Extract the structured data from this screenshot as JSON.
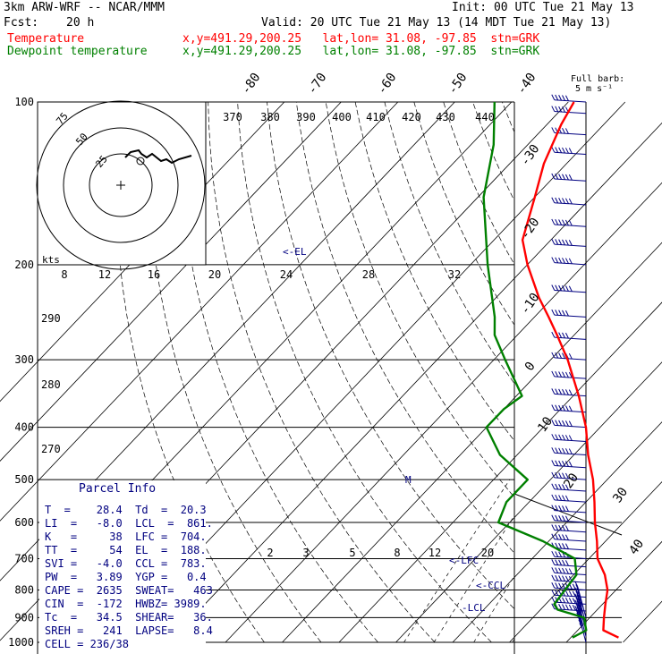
{
  "header": {
    "model": "3km ARW-WRF -- NCAR/MMM",
    "init": "Init: 00 UTC Tue 21 May 13",
    "fcst_label": "Fcst:",
    "fcst_value": "20 h",
    "valid": "Valid: 20 UTC Tue 21 May 13 (14 MDT Tue 21 May 13)",
    "temp_label": "Temperature",
    "dew_label": "Dewpoint temperature",
    "loc_line": "x,y=491.29,200.25   lat,lon= 31.08, -97.85  stn=GRK"
  },
  "barb_scale": {
    "line1": "Full barb:",
    "line2": "5 m s⁻¹"
  },
  "hodograph": {
    "unit": "kts",
    "rings": [
      "25",
      "50",
      "75"
    ]
  },
  "parcel": {
    "title": "Parcel Info",
    "rows": [
      "T  =    28.4  Td  =  20.3",
      "LI  =   -8.0  LCL  =  861.",
      "K   =     38  LFC =  704.",
      "TT  =     54  EL  =  188.",
      "SVI =   -4.0  CCL =  783.",
      "PW  =   3.89  YGP =   0.4",
      "CAPE =  2635  SWEAT=   463",
      "CIN  =  -172  HWBZ= 3989.",
      "Tc  =   34.5  SHEAR=   36.",
      "SREH =   241  LAPSE=   8.4",
      "CELL = 236/38"
    ]
  },
  "levels": {
    "lcl": "-LCL",
    "ccl": "<-CCL",
    "lfc": "<-LFC",
    "el": "<-EL",
    "m": "M"
  },
  "colors": {
    "temperature": "#ff0000",
    "dewpoint": "#008000",
    "info": "#000080",
    "barbs": "#000080"
  },
  "chart_data": {
    "type": "line",
    "subtype": "skew-T log-p",
    "y_axis": {
      "label": "pressure (hPa)",
      "ticks": [
        100,
        200,
        300,
        400,
        500,
        600,
        700,
        800,
        900,
        1000
      ],
      "scale": "log",
      "range": [
        1000,
        100
      ]
    },
    "isotherm_labels": [
      "-80",
      "-70",
      "-60",
      "-50",
      "-40",
      "-30",
      "-20",
      "-10",
      "0",
      "10",
      "20",
      "30",
      "40"
    ],
    "theta_labels": [
      "370",
      "380",
      "390",
      "400",
      "410",
      "420",
      "430",
      "440"
    ],
    "mixing_ratio_labels_upper": [
      "8",
      "12",
      "16",
      "20",
      "24",
      "28",
      "32"
    ],
    "mixing_ratio_labels_lower": [
      "2",
      "3",
      "5",
      "8",
      "12",
      "20"
    ],
    "dry_adiabat_labels": [
      "290",
      "280",
      "270"
    ],
    "series": [
      {
        "name": "Temperature",
        "color": "#ff0000",
        "points": [
          [
            980,
            28.4
          ],
          [
            950,
            24.5
          ],
          [
            900,
            22.5
          ],
          [
            850,
            20.5
          ],
          [
            800,
            18.5
          ],
          [
            750,
            15.5
          ],
          [
            700,
            11.5
          ],
          [
            650,
            8.5
          ],
          [
            600,
            5.0
          ],
          [
            550,
            1.5
          ],
          [
            500,
            -2.5
          ],
          [
            450,
            -7.5
          ],
          [
            400,
            -12.5
          ],
          [
            350,
            -19.0
          ],
          [
            300,
            -27.0
          ],
          [
            270,
            -33.0
          ],
          [
            250,
            -37.5
          ],
          [
            230,
            -42.5
          ],
          [
            200,
            -50.0
          ],
          [
            180,
            -55.0
          ],
          [
            150,
            -60.0
          ],
          [
            130,
            -64.0
          ],
          [
            110,
            -67.5
          ],
          [
            100,
            -69.0
          ]
        ]
      },
      {
        "name": "Dewpoint temperature",
        "color": "#008000",
        "points": [
          [
            980,
            20.3
          ],
          [
            950,
            21.5
          ],
          [
            900,
            19.0
          ],
          [
            870,
            13.0
          ],
          [
            850,
            11.5
          ],
          [
            800,
            11.0
          ],
          [
            750,
            10.5
          ],
          [
            700,
            7.5
          ],
          [
            650,
            -1.0
          ],
          [
            600,
            -12.0
          ],
          [
            550,
            -14.0
          ],
          [
            500,
            -14.0
          ],
          [
            450,
            -23.0
          ],
          [
            400,
            -30.0
          ],
          [
            370,
            -30.0
          ],
          [
            350,
            -29.0
          ],
          [
            300,
            -38.0
          ],
          [
            270,
            -44.0
          ],
          [
            250,
            -47.0
          ],
          [
            200,
            -57.0
          ],
          [
            150,
            -69.0
          ],
          [
            120,
            -76.0
          ],
          [
            100,
            -83.0
          ]
        ]
      }
    ],
    "wind_profile": [
      [
        1000,
        30
      ],
      [
        975,
        35
      ],
      [
        950,
        35
      ],
      [
        925,
        35
      ],
      [
        900,
        35
      ],
      [
        875,
        35
      ],
      [
        850,
        35
      ],
      [
        825,
        35
      ],
      [
        800,
        35
      ],
      [
        775,
        30
      ],
      [
        750,
        30
      ],
      [
        725,
        25
      ],
      [
        700,
        25
      ],
      [
        675,
        25
      ],
      [
        650,
        25
      ],
      [
        625,
        25
      ],
      [
        600,
        25
      ],
      [
        575,
        25
      ],
      [
        550,
        25
      ],
      [
        525,
        25
      ],
      [
        500,
        25
      ],
      [
        475,
        30
      ],
      [
        450,
        30
      ],
      [
        425,
        30
      ],
      [
        400,
        30
      ],
      [
        375,
        30
      ],
      [
        350,
        30
      ],
      [
        325,
        30
      ],
      [
        300,
        30
      ],
      [
        275,
        25
      ],
      [
        250,
        25
      ],
      [
        225,
        30
      ],
      [
        200,
        30
      ],
      [
        185,
        30
      ],
      [
        170,
        30
      ],
      [
        155,
        30
      ],
      [
        140,
        30
      ],
      [
        125,
        30
      ],
      [
        115,
        25
      ],
      [
        105,
        25
      ],
      [
        100,
        25
      ]
    ]
  }
}
